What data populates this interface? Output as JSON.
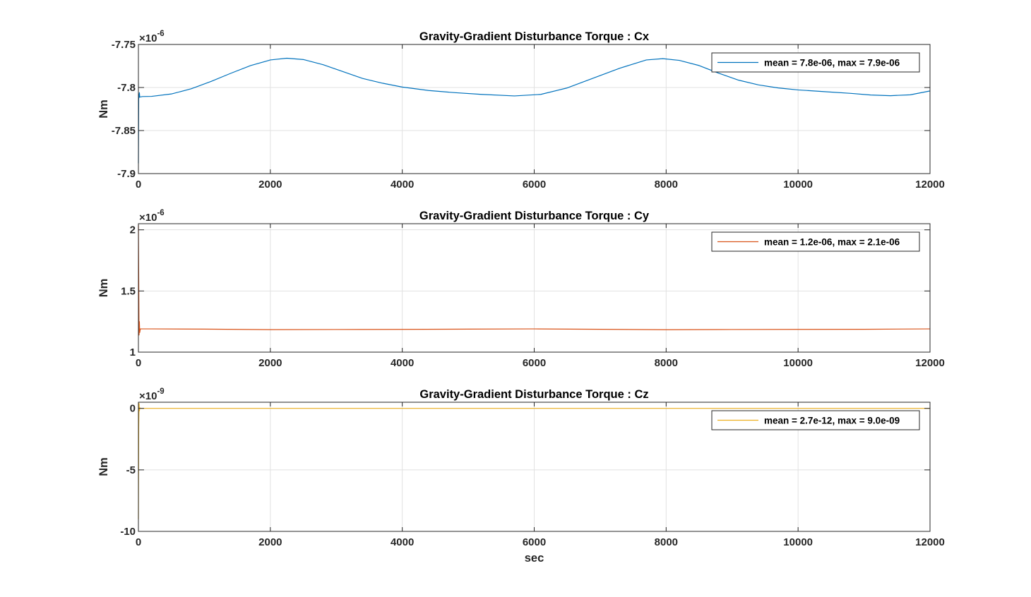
{
  "chart_data": [
    {
      "type": "line",
      "title": "Gravity-Gradient Disturbance Torque : Cx",
      "xlabel": "",
      "ylabel": "Nm",
      "exponent": "×10",
      "exponent_power": "-6",
      "xlim": [
        0,
        12000
      ],
      "ylim": [
        -7.9,
        -7.75
      ],
      "xticks": [
        0,
        2000,
        4000,
        6000,
        8000,
        10000,
        12000
      ],
      "xtick_labels": [
        "0",
        "2000",
        "4000",
        "6000",
        "8000",
        "10000",
        "12000"
      ],
      "yticks": [
        -7.9,
        -7.85,
        -7.8,
        -7.75
      ],
      "ytick_labels": [
        "-7.9",
        "-7.85",
        "-7.8",
        "-7.75"
      ],
      "grid": true,
      "legend_position": "top-right",
      "series": [
        {
          "name": "mean = 7.8e-06, max = 7.9e-06",
          "color": "#0072BD",
          "x": [
            0,
            5,
            10,
            15,
            20,
            30,
            60,
            200,
            500,
            800,
            1100,
            1400,
            1700,
            2000,
            2250,
            2500,
            2800,
            3100,
            3400,
            3700,
            4000,
            4400,
            4800,
            5200,
            5700,
            6100,
            6500,
            6900,
            7300,
            7700,
            7950,
            8200,
            8500,
            8800,
            9100,
            9400,
            9700,
            10000,
            10400,
            10800,
            11100,
            11400,
            11700,
            12000
          ],
          "y": [
            -7.888,
            -7.808,
            -7.812,
            -7.806,
            -7.811,
            -7.811,
            -7.8105,
            -7.8103,
            -7.8075,
            -7.8015,
            -7.793,
            -7.7835,
            -7.7745,
            -7.768,
            -7.766,
            -7.7675,
            -7.7735,
            -7.7815,
            -7.7895,
            -7.795,
            -7.7995,
            -7.8035,
            -7.806,
            -7.808,
            -7.8098,
            -7.808,
            -7.8005,
            -7.789,
            -7.7775,
            -7.768,
            -7.7665,
            -7.7685,
            -7.7745,
            -7.7835,
            -7.7915,
            -7.797,
            -7.8005,
            -7.8028,
            -7.8048,
            -7.8068,
            -7.8087,
            -7.8095,
            -7.8085,
            -7.804
          ]
        }
      ]
    },
    {
      "type": "line",
      "title": "Gravity-Gradient Disturbance Torque : Cy",
      "xlabel": "",
      "ylabel": "Nm",
      "exponent": "×10",
      "exponent_power": "-6",
      "xlim": [
        0,
        12000
      ],
      "ylim": [
        1,
        2.05
      ],
      "xticks": [
        0,
        2000,
        4000,
        6000,
        8000,
        10000,
        12000
      ],
      "xtick_labels": [
        "0",
        "2000",
        "4000",
        "6000",
        "8000",
        "10000",
        "12000"
      ],
      "yticks": [
        1,
        1.5,
        2
      ],
      "ytick_labels": [
        "1",
        "1.5",
        "2"
      ],
      "grid": true,
      "legend_position": "top-right",
      "series": [
        {
          "name": "mean = 1.2e-06, max = 2.1e-06",
          "color": "#D95319",
          "x": [
            0,
            5,
            10,
            15,
            20,
            30,
            60,
            200,
            1000,
            2000,
            3000,
            4000,
            5000,
            6000,
            7000,
            8000,
            9000,
            10000,
            11000,
            12000
          ],
          "y": [
            2.04,
            1.6,
            1.14,
            1.25,
            1.16,
            1.19,
            1.19,
            1.19,
            1.188,
            1.184,
            1.185,
            1.186,
            1.188,
            1.19,
            1.187,
            1.183,
            1.185,
            1.186,
            1.187,
            1.19
          ]
        }
      ]
    },
    {
      "type": "line",
      "title": "Gravity-Gradient Disturbance Torque : Cz",
      "xlabel": "sec",
      "ylabel": "Nm",
      "exponent": "×10",
      "exponent_power": "-9",
      "xlim": [
        0,
        12000
      ],
      "ylim": [
        -10,
        0.5
      ],
      "xticks": [
        0,
        2000,
        4000,
        6000,
        8000,
        10000,
        12000
      ],
      "xtick_labels": [
        "0",
        "2000",
        "4000",
        "6000",
        "8000",
        "10000",
        "12000"
      ],
      "yticks": [
        -10,
        -5,
        0
      ],
      "ytick_labels": [
        "-10",
        "-5",
        "0"
      ],
      "grid": true,
      "legend_position": "top-right",
      "series": [
        {
          "name": "mean = 2.7e-12, max = 9.0e-09",
          "color": "#EDB120",
          "x": [
            0,
            5,
            10,
            15,
            20,
            30,
            60,
            200,
            12000
          ],
          "y": [
            -9,
            -1.5,
            0.4,
            -0.2,
            0.05,
            0,
            0,
            0,
            0
          ]
        }
      ]
    }
  ]
}
